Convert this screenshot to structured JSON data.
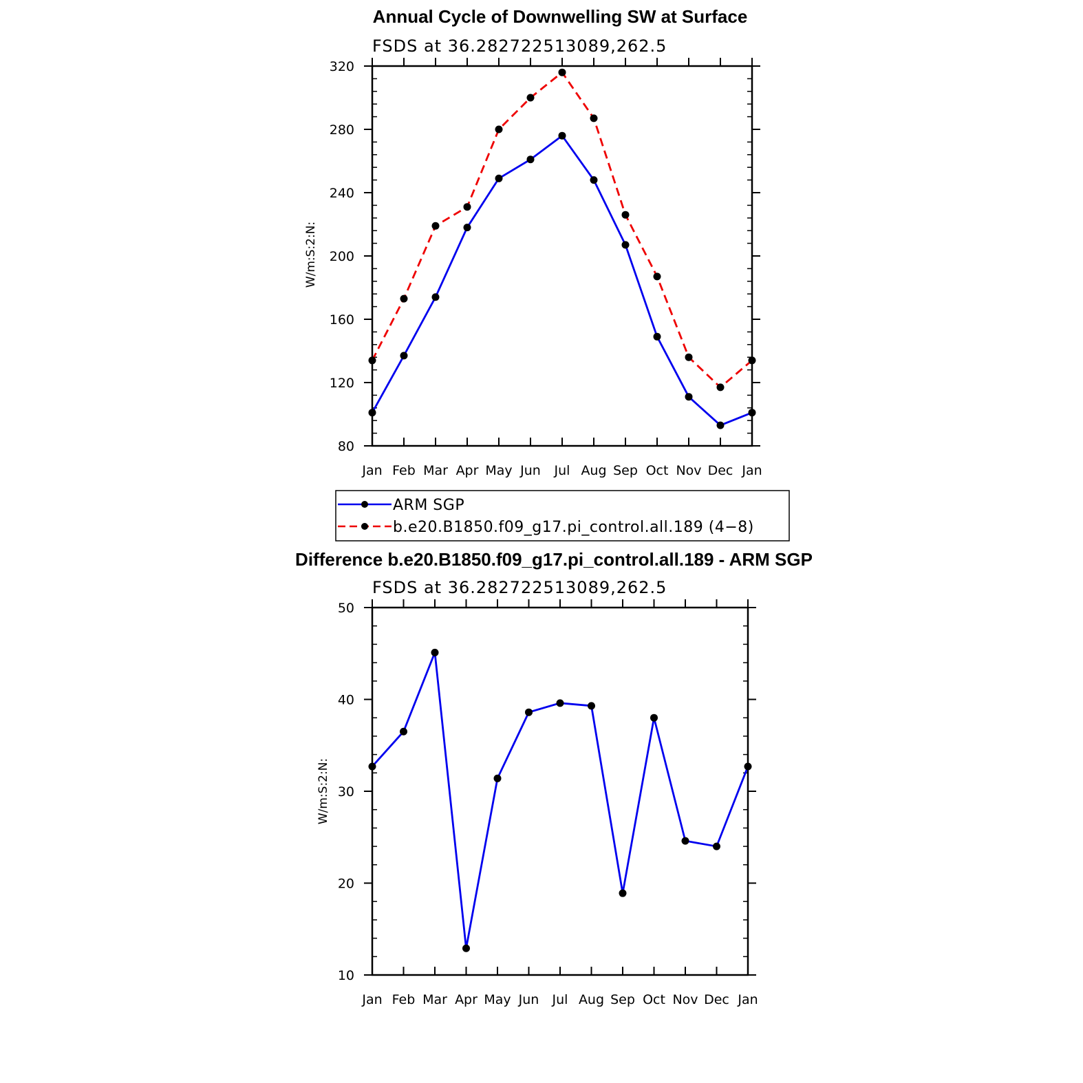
{
  "chart_data": [
    {
      "type": "line",
      "title": "Annual Cycle of Downwelling SW at Surface",
      "subtitle": "FSDS at 36.282722513089,262.5",
      "xlabel": "",
      "ylabel": "W/m:S:2:N:",
      "categories": [
        "Jan",
        "Feb",
        "Mar",
        "Apr",
        "May",
        "Jun",
        "Jul",
        "Aug",
        "Sep",
        "Oct",
        "Nov",
        "Dec",
        "Jan"
      ],
      "ylim": [
        80,
        320
      ],
      "yticks": [
        "80",
        "120",
        "160",
        "200",
        "240",
        "280",
        "320"
      ],
      "series": [
        {
          "name": "ARM SGP",
          "color": "#0000ee",
          "style": "solid",
          "values": [
            101,
            137,
            174,
            218,
            249,
            261,
            276,
            248,
            207,
            149,
            111,
            93,
            101
          ]
        },
        {
          "name": "b.e20.B1850.f09_g17.pi_control.all.189 (4−8)",
          "color": "#ee0000",
          "style": "dashed",
          "values": [
            134,
            173,
            219,
            231,
            280,
            300,
            316,
            287,
            226,
            187,
            136,
            117,
            134
          ]
        }
      ]
    },
    {
      "type": "line",
      "title": "Difference b.e20.B1850.f09_g17.pi_control.all.189 - ARM SGP",
      "subtitle": "FSDS at 36.282722513089,262.5",
      "xlabel": "",
      "ylabel": "W/m:S:2:N:",
      "categories": [
        "Jan",
        "Feb",
        "Mar",
        "Apr",
        "May",
        "Jun",
        "Jul",
        "Aug",
        "Sep",
        "Oct",
        "Nov",
        "Dec",
        "Jan"
      ],
      "ylim": [
        10,
        50
      ],
      "yticks": [
        "10",
        "20",
        "30",
        "40",
        "50"
      ],
      "series": [
        {
          "name": "Difference",
          "color": "#0000ee",
          "style": "solid",
          "values": [
            32.7,
            36.5,
            45.1,
            12.9,
            31.4,
            38.6,
            39.6,
            39.3,
            18.9,
            38.0,
            24.6,
            24.0,
            32.7
          ]
        }
      ]
    }
  ]
}
